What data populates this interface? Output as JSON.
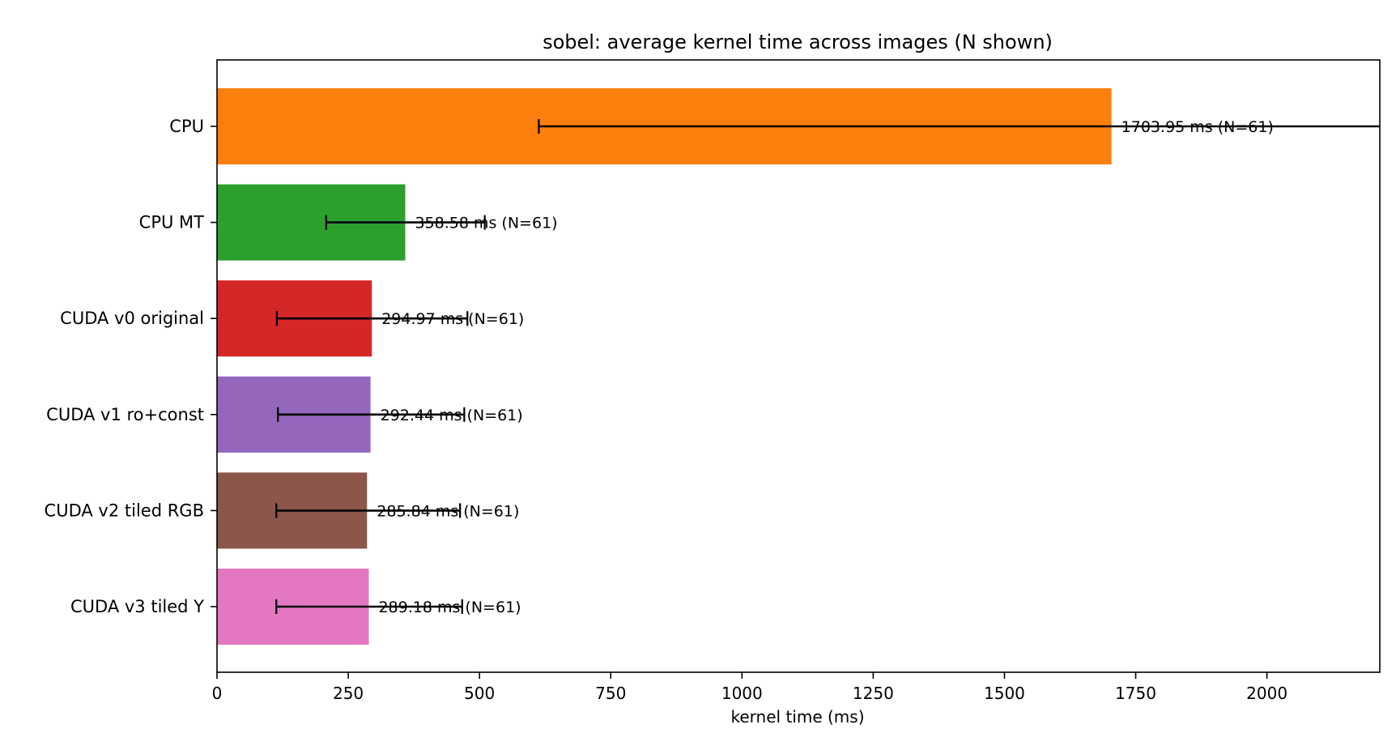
{
  "chart_data": {
    "type": "bar",
    "orientation": "horizontal",
    "title": "sobel: average kernel time across images (N shown)",
    "xlabel": "kernel time (ms)",
    "ylabel": "",
    "xlim": [
      0,
      2215
    ],
    "xticks": [
      0,
      250,
      500,
      750,
      1000,
      1250,
      1500,
      1750,
      2000
    ],
    "xtick_labels": [
      "0",
      "250",
      "500",
      "750",
      "1000",
      "1250",
      "1500",
      "1750",
      "2000"
    ],
    "grid": false,
    "categories": [
      "CPU",
      "CPU MT",
      "CUDA v0 original",
      "CUDA v1 ro+const",
      "CUDA v2 tiled RGB",
      "CUDA v3 tiled Y"
    ],
    "values": [
      1703.95,
      358.58,
      294.97,
      292.44,
      285.84,
      289.18
    ],
    "error_low": [
      613,
      208,
      114,
      116,
      113,
      113
    ],
    "error_high": [
      2230,
      510,
      477,
      471,
      463,
      467
    ],
    "n_counts": [
      61,
      61,
      61,
      61,
      61,
      61
    ],
    "data_labels": [
      "1703.95 ms  (N=61)",
      "358.58 ms  (N=61)",
      "294.97 ms  (N=61)",
      "292.44 ms  (N=61)",
      "285.84 ms  (N=61)",
      "289.18 ms  (N=61)"
    ],
    "colors": [
      "#ff7f0e",
      "#2ca02c",
      "#d62728",
      "#9467bd",
      "#8c564b",
      "#e377c2"
    ]
  }
}
